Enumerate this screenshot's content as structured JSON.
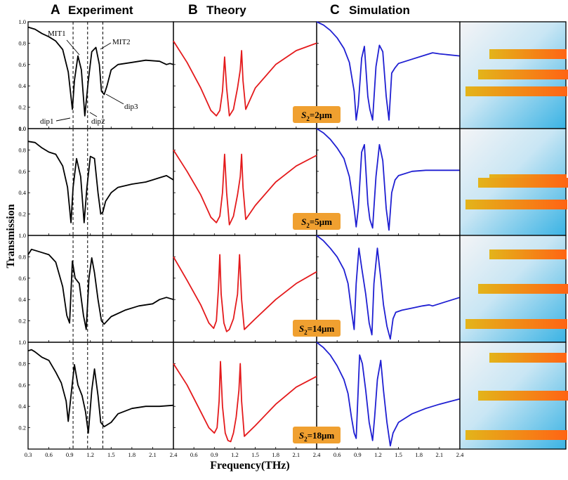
{
  "chart_data": {
    "type": "line",
    "panels": [
      {
        "letter": "A",
        "title": "Experiment",
        "color": "#000000"
      },
      {
        "letter": "B",
        "title": "Theory",
        "color": "#e41a1c"
      },
      {
        "letter": "C",
        "title": "Simulation",
        "color": "#1f1fd2"
      }
    ],
    "xlabel": "Frequency(THz)",
    "ylabel": "Transmission",
    "xlim": [
      0.3,
      2.4
    ],
    "ylim": [
      0.0,
      1.0
    ],
    "xticks": [
      "0.3",
      "0.6",
      "0.9",
      "1.2",
      "1.5",
      "1.8",
      "2.1",
      "2.4"
    ],
    "yticks": [
      "0.0",
      "0.2",
      "0.4",
      "0.6",
      "0.8",
      "1.0"
    ],
    "dashed_lines_x": [
      0.95,
      1.16,
      1.38
    ],
    "rows": [
      {
        "s2_prefix": "S",
        "s2_sub": "2",
        "s2_value": "=2μm",
        "experiment": {
          "x": [
            0.3,
            0.4,
            0.5,
            0.6,
            0.7,
            0.8,
            0.88,
            0.94,
            0.97,
            1.02,
            1.07,
            1.12,
            1.17,
            1.22,
            1.28,
            1.33,
            1.36,
            1.4,
            1.44,
            1.5,
            1.6,
            1.8,
            2.0,
            2.2,
            2.3,
            2.35,
            2.4
          ],
          "y": [
            0.95,
            0.93,
            0.89,
            0.86,
            0.82,
            0.74,
            0.53,
            0.18,
            0.45,
            0.68,
            0.55,
            0.12,
            0.45,
            0.72,
            0.76,
            0.6,
            0.35,
            0.32,
            0.4,
            0.55,
            0.6,
            0.62,
            0.64,
            0.63,
            0.6,
            0.61,
            0.6
          ]
        },
        "theory": {
          "x": [
            0.3,
            0.5,
            0.7,
            0.85,
            0.93,
            0.98,
            1.02,
            1.05,
            1.08,
            1.12,
            1.18,
            1.24,
            1.28,
            1.3,
            1.32,
            1.36,
            1.5,
            1.8,
            2.1,
            2.4
          ],
          "y": [
            0.82,
            0.62,
            0.38,
            0.17,
            0.12,
            0.17,
            0.35,
            0.67,
            0.38,
            0.12,
            0.18,
            0.38,
            0.55,
            0.73,
            0.45,
            0.18,
            0.38,
            0.6,
            0.73,
            0.8
          ]
        },
        "simulation": {
          "x": [
            0.3,
            0.4,
            0.5,
            0.6,
            0.7,
            0.78,
            0.85,
            0.88,
            0.91,
            0.96,
            1.0,
            1.05,
            1.08,
            1.12,
            1.17,
            1.22,
            1.27,
            1.32,
            1.36,
            1.4,
            1.45,
            1.5,
            1.7,
            1.9,
            2.0,
            2.1,
            2.4
          ],
          "y": [
            1.0,
            0.97,
            0.92,
            0.85,
            0.75,
            0.62,
            0.35,
            0.08,
            0.22,
            0.66,
            0.77,
            0.3,
            0.18,
            0.08,
            0.58,
            0.78,
            0.72,
            0.3,
            0.08,
            0.52,
            0.57,
            0.61,
            0.65,
            0.69,
            0.71,
            0.7,
            0.68
          ]
        }
      },
      {
        "s2_prefix": "S",
        "s2_sub": "2",
        "s2_value": "=5μm",
        "experiment": {
          "x": [
            0.3,
            0.4,
            0.5,
            0.6,
            0.7,
            0.8,
            0.87,
            0.92,
            0.95,
            1.0,
            1.06,
            1.11,
            1.15,
            1.2,
            1.26,
            1.31,
            1.35,
            1.38,
            1.42,
            1.5,
            1.6,
            1.8,
            2.0,
            2.1,
            2.2,
            2.3,
            2.4
          ],
          "y": [
            0.88,
            0.87,
            0.82,
            0.78,
            0.76,
            0.65,
            0.45,
            0.12,
            0.45,
            0.72,
            0.55,
            0.12,
            0.45,
            0.74,
            0.72,
            0.4,
            0.2,
            0.22,
            0.32,
            0.4,
            0.45,
            0.48,
            0.5,
            0.52,
            0.54,
            0.56,
            0.52
          ]
        },
        "theory": {
          "x": [
            0.3,
            0.5,
            0.7,
            0.85,
            0.93,
            0.98,
            1.02,
            1.05,
            1.08,
            1.12,
            1.18,
            1.24,
            1.28,
            1.3,
            1.32,
            1.36,
            1.5,
            1.8,
            2.1,
            2.4
          ],
          "y": [
            0.8,
            0.6,
            0.38,
            0.17,
            0.12,
            0.18,
            0.4,
            0.76,
            0.4,
            0.1,
            0.18,
            0.38,
            0.55,
            0.76,
            0.45,
            0.15,
            0.28,
            0.5,
            0.65,
            0.75
          ]
        },
        "simulation": {
          "x": [
            0.3,
            0.4,
            0.5,
            0.6,
            0.7,
            0.78,
            0.85,
            0.88,
            0.91,
            0.96,
            1.0,
            1.05,
            1.08,
            1.12,
            1.17,
            1.22,
            1.27,
            1.32,
            1.36,
            1.4,
            1.45,
            1.5,
            1.7,
            1.9,
            2.1,
            2.4
          ],
          "y": [
            1.0,
            0.96,
            0.9,
            0.82,
            0.72,
            0.55,
            0.25,
            0.08,
            0.25,
            0.78,
            0.85,
            0.3,
            0.15,
            0.07,
            0.55,
            0.85,
            0.7,
            0.25,
            0.05,
            0.4,
            0.52,
            0.56,
            0.6,
            0.61,
            0.61,
            0.61
          ]
        }
      },
      {
        "s2_prefix": "S",
        "s2_sub": "2",
        "s2_value": "=14μm",
        "experiment": {
          "x": [
            0.3,
            0.35,
            0.4,
            0.5,
            0.6,
            0.7,
            0.8,
            0.86,
            0.9,
            0.94,
            0.98,
            1.04,
            1.1,
            1.14,
            1.18,
            1.22,
            1.26,
            1.31,
            1.36,
            1.4,
            1.5,
            1.7,
            1.9,
            2.1,
            2.2,
            2.3,
            2.4
          ],
          "y": [
            0.82,
            0.87,
            0.86,
            0.84,
            0.82,
            0.75,
            0.52,
            0.25,
            0.18,
            0.76,
            0.6,
            0.55,
            0.25,
            0.12,
            0.6,
            0.79,
            0.65,
            0.4,
            0.2,
            0.17,
            0.24,
            0.3,
            0.34,
            0.36,
            0.4,
            0.42,
            0.4
          ]
        },
        "theory": {
          "x": [
            0.3,
            0.5,
            0.7,
            0.82,
            0.89,
            0.93,
            0.96,
            0.98,
            1.0,
            1.04,
            1.08,
            1.12,
            1.18,
            1.24,
            1.27,
            1.3,
            1.34,
            1.5,
            1.8,
            2.1,
            2.4
          ],
          "y": [
            0.8,
            0.58,
            0.35,
            0.18,
            0.13,
            0.2,
            0.5,
            0.82,
            0.45,
            0.18,
            0.1,
            0.12,
            0.22,
            0.45,
            0.82,
            0.4,
            0.12,
            0.22,
            0.4,
            0.55,
            0.66
          ]
        },
        "simulation": {
          "x": [
            0.3,
            0.4,
            0.5,
            0.6,
            0.7,
            0.76,
            0.81,
            0.85,
            0.88,
            0.92,
            0.96,
            1.02,
            1.07,
            1.11,
            1.14,
            1.19,
            1.24,
            1.28,
            1.33,
            1.38,
            1.42,
            1.46,
            1.55,
            1.7,
            1.85,
            1.95,
            2.0,
            2.2,
            2.4
          ],
          "y": [
            1.0,
            0.95,
            0.88,
            0.8,
            0.68,
            0.55,
            0.3,
            0.12,
            0.55,
            0.88,
            0.7,
            0.45,
            0.18,
            0.07,
            0.55,
            0.88,
            0.6,
            0.35,
            0.15,
            0.03,
            0.22,
            0.28,
            0.3,
            0.32,
            0.34,
            0.35,
            0.34,
            0.38,
            0.42
          ]
        }
      },
      {
        "s2_prefix": "S",
        "s2_sub": "2",
        "s2_value": "=18μm",
        "experiment": {
          "x": [
            0.3,
            0.35,
            0.4,
            0.5,
            0.6,
            0.7,
            0.78,
            0.85,
            0.88,
            0.92,
            0.97,
            1.02,
            1.08,
            1.13,
            1.17,
            1.22,
            1.26,
            1.31,
            1.35,
            1.4,
            1.5,
            1.6,
            1.8,
            2.0,
            2.2,
            2.4
          ],
          "y": [
            0.92,
            0.93,
            0.91,
            0.86,
            0.83,
            0.72,
            0.62,
            0.45,
            0.26,
            0.5,
            0.79,
            0.6,
            0.5,
            0.35,
            0.15,
            0.55,
            0.75,
            0.5,
            0.25,
            0.21,
            0.25,
            0.33,
            0.38,
            0.4,
            0.4,
            0.41
          ]
        },
        "theory": {
          "x": [
            0.3,
            0.5,
            0.7,
            0.82,
            0.9,
            0.94,
            0.97,
            0.99,
            1.02,
            1.06,
            1.1,
            1.14,
            1.18,
            1.22,
            1.26,
            1.28,
            1.3,
            1.34,
            1.5,
            1.8,
            2.1,
            2.4
          ],
          "y": [
            0.8,
            0.6,
            0.35,
            0.2,
            0.15,
            0.2,
            0.45,
            0.82,
            0.4,
            0.15,
            0.08,
            0.07,
            0.15,
            0.3,
            0.55,
            0.8,
            0.45,
            0.12,
            0.22,
            0.42,
            0.58,
            0.68
          ]
        },
        "simulation": {
          "x": [
            0.3,
            0.4,
            0.5,
            0.6,
            0.7,
            0.76,
            0.81,
            0.85,
            0.88,
            0.93,
            0.97,
            1.02,
            1.07,
            1.12,
            1.15,
            1.19,
            1.24,
            1.28,
            1.33,
            1.38,
            1.42,
            1.5,
            1.7,
            1.9,
            2.1,
            2.4
          ],
          "y": [
            1.0,
            0.95,
            0.88,
            0.78,
            0.65,
            0.52,
            0.3,
            0.15,
            0.1,
            0.88,
            0.8,
            0.55,
            0.25,
            0.08,
            0.3,
            0.65,
            0.83,
            0.55,
            0.25,
            0.03,
            0.15,
            0.25,
            0.33,
            0.38,
            0.42,
            0.47
          ]
        }
      }
    ],
    "annotations": [
      "MIT1",
      "MIT2",
      "dip1",
      "dip2",
      "dip3"
    ],
    "s2_box_color": "#f0a030"
  },
  "colors": {
    "experiment": "#000000",
    "theory": "#e41a1c",
    "simulation": "#1f1fd2",
    "bar_left": "#e8b400",
    "bar_right": "#ff6a10",
    "bg_light": "#f2f2f4",
    "bg_blue": "#3ab3e4"
  }
}
